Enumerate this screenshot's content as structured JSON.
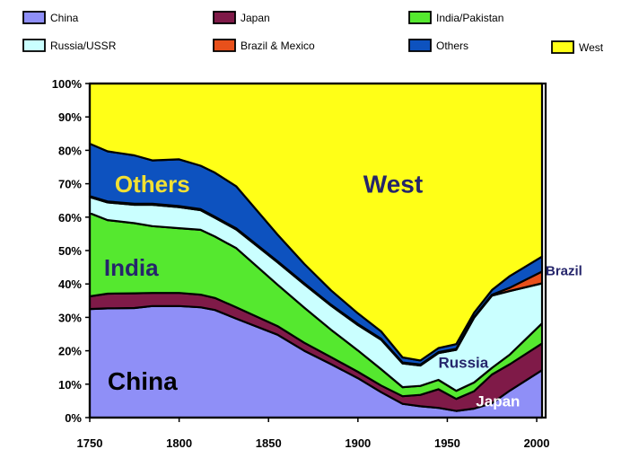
{
  "chart_data": {
    "type": "area",
    "stacked": true,
    "normalized": true,
    "x": [
      1750,
      1760,
      1775,
      1785,
      1800,
      1812,
      1820,
      1832,
      1855,
      1870,
      1885,
      1900,
      1913,
      1925,
      1935,
      1945,
      1955,
      1965,
      1975,
      1985,
      2003
    ],
    "series": [
      {
        "name": "China",
        "color": "#8f8ff7",
        "values": [
          32.5,
          32.7,
          32.8,
          33.4,
          33.4,
          33.0,
          32.2,
          29.6,
          24.8,
          20.0,
          16.0,
          11.8,
          7.6,
          4.1,
          3.4,
          2.9,
          2.0,
          2.7,
          4.3,
          8.1,
          14.2
        ]
      },
      {
        "name": "Japan",
        "color": "#7f1a48",
        "values": [
          3.8,
          4.4,
          4.4,
          3.9,
          3.9,
          3.8,
          3.6,
          3.4,
          2.6,
          2.4,
          2.1,
          1.9,
          2.0,
          2.3,
          3.4,
          5.6,
          3.6,
          5.2,
          8.6,
          7.9,
          8.0
        ]
      },
      {
        "name": "India/Pakistan",
        "color": "#55e82f",
        "values": [
          24.9,
          22.0,
          21.0,
          20.0,
          19.4,
          19.4,
          18.4,
          17.7,
          12.4,
          10.5,
          8.2,
          6.4,
          4.9,
          2.7,
          2.7,
          2.8,
          2.4,
          2.6,
          2.0,
          2.9,
          6.0
        ]
      },
      {
        "name": "Russia/USSR",
        "color": "#caffff",
        "values": [
          4.8,
          5.3,
          5.5,
          6.4,
          6.3,
          5.9,
          5.6,
          5.6,
          6.7,
          7.0,
          7.2,
          7.6,
          8.8,
          7.1,
          6.1,
          8.0,
          12.3,
          19.4,
          21.6,
          19.0,
          12.0
        ]
      },
      {
        "name": "Brazil & Mexico",
        "color": "#e8501b",
        "values": [
          0.3,
          0.3,
          0.3,
          0.3,
          0.3,
          0.3,
          0.3,
          0.3,
          0.3,
          0.3,
          0.3,
          0.3,
          0.3,
          0.3,
          0.3,
          0.3,
          0.3,
          0.3,
          0.3,
          1.0,
          3.5
        ]
      },
      {
        "name": "Others",
        "color": "#0d52bf",
        "values": [
          15.7,
          15.0,
          14.5,
          13.0,
          14.0,
          13.0,
          13.2,
          12.6,
          8.0,
          5.8,
          4.3,
          3.2,
          2.2,
          1.5,
          1.2,
          1.2,
          1.4,
          1.2,
          1.4,
          3.5,
          4.5
        ]
      },
      {
        "name": "West",
        "color": "#ffff17",
        "values": [
          18.0,
          20.3,
          21.5,
          23.0,
          22.7,
          24.6,
          26.7,
          30.8,
          45.2,
          54.0,
          61.9,
          68.8,
          74.2,
          82.0,
          82.9,
          79.2,
          78.0,
          68.6,
          61.8,
          57.6,
          51.8
        ]
      }
    ],
    "ylim": [
      0,
      100
    ],
    "xlim": [
      1750,
      2005
    ],
    "y_ticks": [
      "0%",
      "10%",
      "20%",
      "30%",
      "40%",
      "50%",
      "60%",
      "70%",
      "80%",
      "90%",
      "100%"
    ],
    "x_ticks": [
      1750,
      1800,
      1850,
      1900,
      1950,
      2000
    ],
    "legend": {
      "placement": "top",
      "entries": [
        {
          "name": "China",
          "color": "#8f8ff7"
        },
        {
          "name": "Japan",
          "color": "#7f1a48"
        },
        {
          "name": "India/Pakistan",
          "color": "#55e82f"
        },
        {
          "name": "Russia/USSR",
          "color": "#caffff"
        },
        {
          "name": "Brazil & Mexico",
          "color": "#e8501b"
        },
        {
          "name": "Others",
          "color": "#0d52bf"
        },
        {
          "name": "West",
          "color": "#ffff17"
        }
      ]
    },
    "annotations": [
      {
        "text": "Others",
        "color": "#f2e033",
        "x": 1764,
        "y": 70,
        "size": 26
      },
      {
        "text": "West",
        "color": "#25256b",
        "x": 1903,
        "y": 70,
        "size": 28
      },
      {
        "text": "India",
        "color": "#25256b",
        "x": 1758,
        "y": 45,
        "size": 26
      },
      {
        "text": "China",
        "color": "#000000",
        "x": 1760,
        "y": 11,
        "size": 28
      },
      {
        "text": "Russia",
        "color": "#25256b",
        "x": 1945,
        "y": 16.5,
        "size": 17
      },
      {
        "text": "Japan",
        "color": "#ffffff",
        "x": 1966,
        "y": 5,
        "size": 17
      },
      {
        "text": "Brazil",
        "color": "#25256b",
        "x": 2005,
        "y": 44,
        "size": 15
      }
    ],
    "grid": false
  }
}
